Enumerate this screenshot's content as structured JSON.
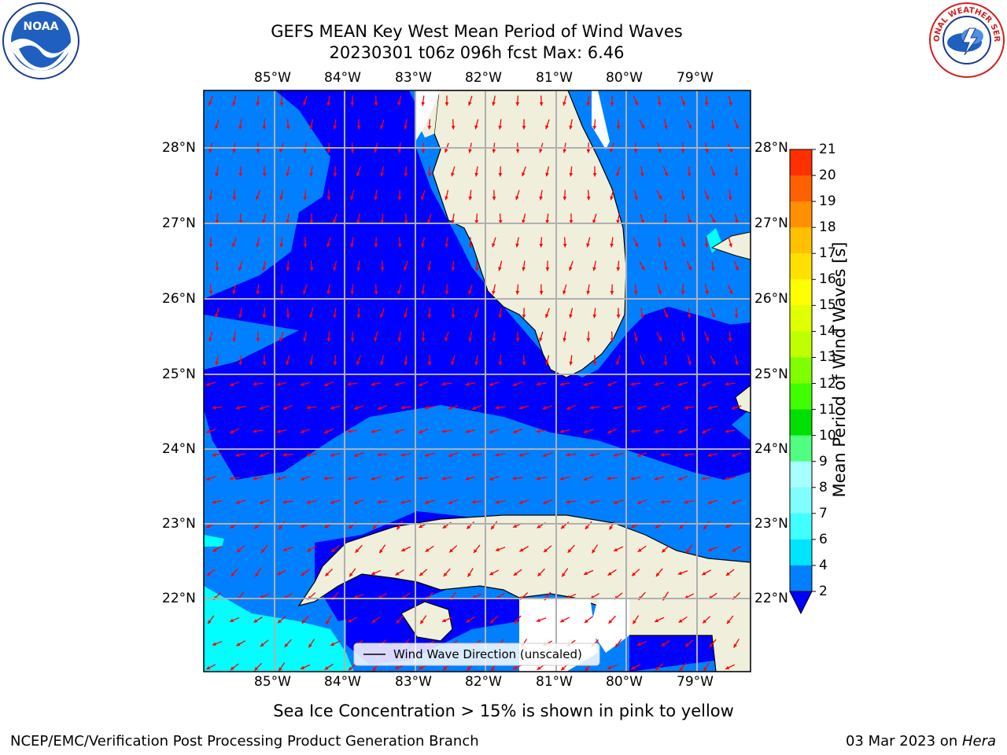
{
  "header": {
    "title_line1": "GEFS MEAN Key West Mean Period of Wind Waves",
    "title_line2": "20230301 t06z 096h fcst   Max: 6.46"
  },
  "logos": {
    "left": {
      "name": "noaa-logo",
      "text": "NOAA"
    },
    "right": {
      "name": "nws-logo",
      "text": "NATIONAL WEATHER SERVICE"
    }
  },
  "map": {
    "lon_labels": [
      "85°W",
      "84°W",
      "83°W",
      "82°W",
      "81°W",
      "80°W",
      "79°W"
    ],
    "lat_labels": [
      "28°N",
      "27°N",
      "26°N",
      "25°N",
      "24°N",
      "23°N",
      "22°N"
    ],
    "legend_label": "Wind Wave Direction (unscaled)",
    "colors": {
      "band_2_4": "#0080ff",
      "band_low": "#0000ff",
      "band_4_6": "#00ffff",
      "land": "#efefdc",
      "arrow": "#ff0000",
      "grid": "#b0b0b0"
    }
  },
  "colorbar": {
    "label": "Mean Period of Wind Waves [s]",
    "ticks": [
      "2",
      "4",
      "6",
      "7",
      "8",
      "9",
      "10",
      "11",
      "12",
      "13",
      "14",
      "15",
      "16",
      "17",
      "18",
      "19",
      "20",
      "21"
    ],
    "colors": [
      "#0080ff",
      "#00e5ff",
      "#40ffff",
      "#80ffff",
      "#a8ffff",
      "#50ff80",
      "#00e000",
      "#40ff00",
      "#80ff00",
      "#c0ff00",
      "#e0ff00",
      "#ffff00",
      "#ffe000",
      "#ffc000",
      "#ff9000",
      "#ff6000",
      "#ff3000",
      "#ff0000"
    ],
    "under_color": "#0000ff"
  },
  "footer": {
    "note": "Sea Ice Concentration > 15% is shown in pink to yellow",
    "left": "NCEP/EMC/Verification Post Processing Product Generation Branch",
    "right_date": "03 Mar 2023 on ",
    "right_machine": "Hera"
  }
}
